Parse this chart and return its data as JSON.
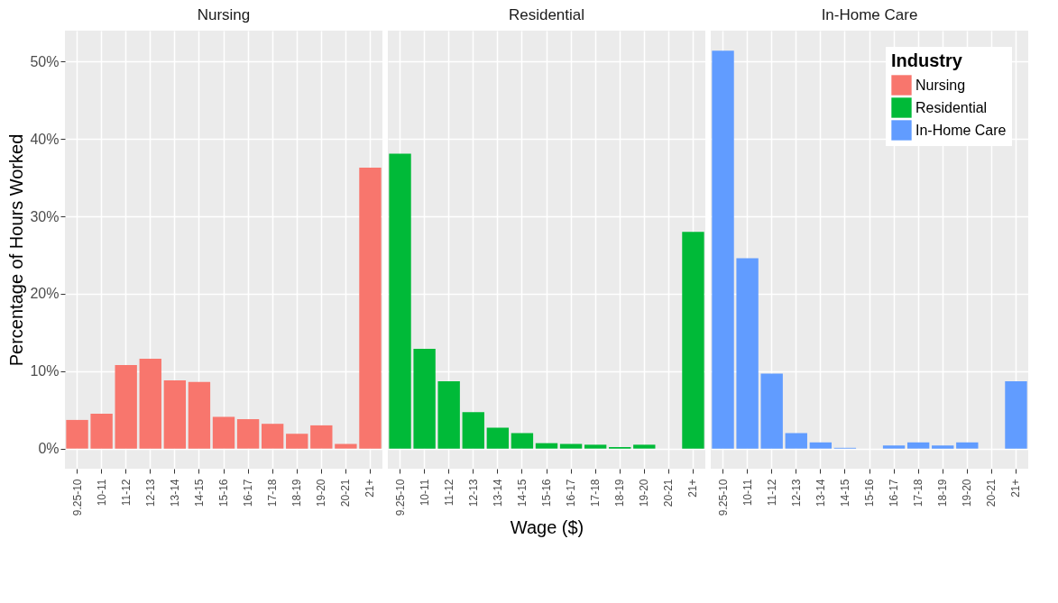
{
  "chart_data": [
    {
      "type": "bar",
      "title": "Nursing",
      "ylabel": "Percentage of Hours Worked",
      "categories": [
        "9.25-10",
        "10-11",
        "11-12",
        "12-13",
        "13-14",
        "14-15",
        "15-16",
        "16-17",
        "17-18",
        "18-19",
        "19-20",
        "20-21",
        "21+"
      ],
      "series": [
        {
          "name": "Nursing",
          "color": "#f8766d",
          "values": [
            3.7,
            4.5,
            10.8,
            11.6,
            8.8,
            8.6,
            4.1,
            3.8,
            3.2,
            1.9,
            3.0,
            0.6,
            36.3
          ]
        }
      ],
      "ylim": [
        -2.6,
        54
      ],
      "yticks": [
        {
          "value": 0,
          "label": "0%"
        },
        {
          "value": 10,
          "label": "10%"
        },
        {
          "value": 20,
          "label": "20%"
        },
        {
          "value": 30,
          "label": "30%"
        },
        {
          "value": 40,
          "label": "40%"
        },
        {
          "value": 50,
          "label": "50%"
        }
      ],
      "grid": true
    },
    {
      "type": "bar",
      "title": "Residential",
      "xlabel": "Wage ($)",
      "categories": [
        "9.25-10",
        "10-11",
        "11-12",
        "12-13",
        "13-14",
        "14-15",
        "15-16",
        "16-17",
        "17-18",
        "18-19",
        "19-20",
        "20-21",
        "21+"
      ],
      "series": [
        {
          "name": "Residential",
          "color": "#00ba38",
          "values": [
            38.1,
            12.9,
            8.7,
            4.7,
            2.7,
            2.0,
            0.7,
            0.6,
            0.5,
            0.2,
            0.5,
            0,
            28.0
          ]
        }
      ],
      "ylim": [
        -2.6,
        54
      ],
      "yticks": [
        0,
        10,
        20,
        30,
        40,
        50
      ],
      "tick_labels": "x",
      "grid": true
    },
    {
      "type": "bar",
      "title": "In-Home Care",
      "legend_title": "Industry",
      "legend": "top right",
      "categories": [
        "9.25-10",
        "10-11",
        "11-12",
        "12-13",
        "13-14",
        "14-15",
        "15-16",
        "16-17",
        "17-18",
        "18-19",
        "19-20",
        "20-21",
        "21+"
      ],
      "series": [
        {
          "name": "In-Home Care",
          "color": "#619cff",
          "values": [
            51.4,
            24.6,
            9.7,
            2.0,
            0.8,
            0.1,
            0,
            0.4,
            0.8,
            0.4,
            0.8,
            0,
            8.7
          ]
        }
      ],
      "ylim": [
        -2.6,
        54
      ],
      "yticks": [
        0,
        10,
        20,
        30,
        40,
        50
      ],
      "tick_labels": "x",
      "grid": true
    }
  ]
}
